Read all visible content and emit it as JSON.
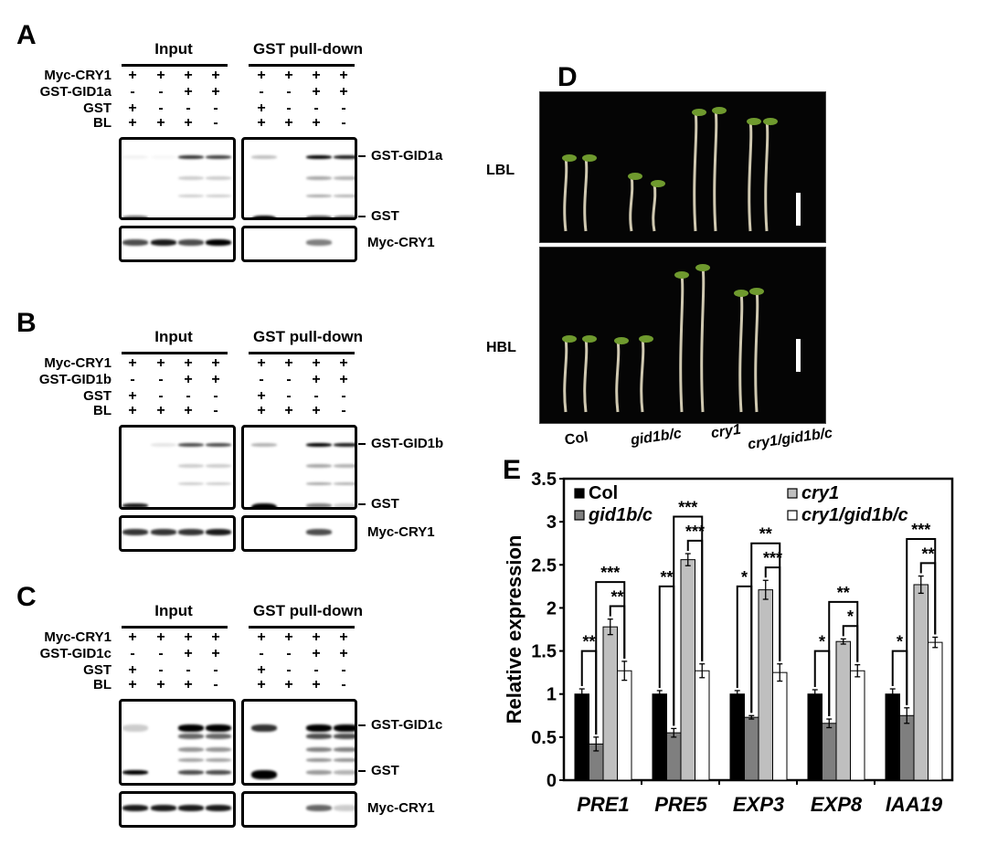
{
  "panels": [
    {
      "letter": "A",
      "input_label": "Input",
      "pulldown_label": "GST pull-down",
      "rows": [
        {
          "name": "Myc-CRY1",
          "signs": [
            "+",
            "+",
            "+",
            "+",
            "+",
            "+",
            "+",
            "+"
          ]
        },
        {
          "name": "GST-GID1a",
          "signs": [
            "-",
            "-",
            "+",
            "+",
            "-",
            "-",
            "+",
            "+"
          ]
        },
        {
          "name": "GST",
          "signs": [
            "+",
            "-",
            "-",
            "-",
            "+",
            "-",
            "-",
            "-"
          ]
        },
        {
          "name": "BL",
          "signs": [
            "+",
            "+",
            "+",
            "-",
            "+",
            "+",
            "+",
            "-"
          ]
        }
      ],
      "band_labels": [
        "GST-GID1a",
        "GST",
        "Myc-CRY1"
      ]
    },
    {
      "letter": "B",
      "input_label": "Input",
      "pulldown_label": "GST pull-down",
      "rows": [
        {
          "name": "Myc-CRY1",
          "signs": [
            "+",
            "+",
            "+",
            "+",
            "+",
            "+",
            "+",
            "+"
          ]
        },
        {
          "name": "GST-GID1b",
          "signs": [
            "-",
            "-",
            "+",
            "+",
            "-",
            "-",
            "+",
            "+"
          ]
        },
        {
          "name": "GST",
          "signs": [
            "+",
            "-",
            "-",
            "-",
            "+",
            "-",
            "-",
            "-"
          ]
        },
        {
          "name": "BL",
          "signs": [
            "+",
            "+",
            "+",
            "-",
            "+",
            "+",
            "+",
            "-"
          ]
        }
      ],
      "band_labels": [
        "GST-GID1b",
        "GST",
        "Myc-CRY1"
      ]
    },
    {
      "letter": "C",
      "input_label": "Input",
      "pulldown_label": "GST pull-down",
      "rows": [
        {
          "name": "Myc-CRY1",
          "signs": [
            "+",
            "+",
            "+",
            "+",
            "+",
            "+",
            "+",
            "+"
          ]
        },
        {
          "name": "GST-GID1c",
          "signs": [
            "-",
            "-",
            "+",
            "+",
            "-",
            "-",
            "+",
            "+"
          ]
        },
        {
          "name": "GST",
          "signs": [
            "+",
            "-",
            "-",
            "-",
            "+",
            "-",
            "-",
            "-"
          ]
        },
        {
          "name": "BL",
          "signs": [
            "+",
            "+",
            "+",
            "-",
            "+",
            "+",
            "+",
            "-"
          ]
        }
      ],
      "band_labels": [
        "GST-GID1c",
        "GST",
        "Myc-CRY1"
      ]
    }
  ],
  "panel_d": {
    "letter": "D",
    "conditions": [
      "LBL",
      "HBL"
    ],
    "genotypes": [
      "Col",
      "gid1b/c",
      "cry1",
      "cry1/gid1b/c"
    ]
  },
  "chart_data": {
    "type": "bar",
    "panel_letter": "E",
    "categories": [
      "PRE1",
      "PRE5",
      "EXP3",
      "EXP8",
      "IAA19"
    ],
    "ylabel": "Relative expression",
    "xlabel": "",
    "ylim": [
      0,
      3.5
    ],
    "yticks": [
      "0",
      "0.5",
      "1",
      "1.5",
      "2",
      "2.5",
      "3",
      "3.5"
    ],
    "legend_position": "top",
    "series": [
      {
        "name": "Col",
        "color": "#000000",
        "values": [
          1.0,
          1.0,
          1.0,
          1.0,
          1.0
        ],
        "errors": [
          0.06,
          0.04,
          0.04,
          0.05,
          0.06
        ]
      },
      {
        "name": "gid1b/c",
        "color": "#7f7f7f",
        "values": [
          0.42,
          0.55,
          0.73,
          0.66,
          0.75
        ],
        "errors": [
          0.08,
          0.05,
          0.02,
          0.05,
          0.09
        ]
      },
      {
        "name": "cry1",
        "color": "#bfbfbf",
        "values": [
          1.78,
          2.56,
          2.21,
          1.61,
          2.27
        ],
        "errors": [
          0.09,
          0.07,
          0.11,
          0.03,
          0.1
        ]
      },
      {
        "name": "cry1/gid1b/c",
        "color": "#ffffff",
        "values": [
          1.27,
          1.27,
          1.25,
          1.27,
          1.6
        ],
        "errors": [
          0.11,
          0.08,
          0.1,
          0.07,
          0.06
        ]
      }
    ],
    "significance": [
      {
        "category": "PRE1",
        "col_vs_gid": "**",
        "gid_vs_double": "***",
        "cry1_vs_double": "**"
      },
      {
        "category": "PRE5",
        "col_vs_gid": "**",
        "gid_vs_double": "***",
        "cry1_vs_double": "***"
      },
      {
        "category": "EXP3",
        "col_vs_gid": "*",
        "gid_vs_double": "**",
        "cry1_vs_double": "***"
      },
      {
        "category": "EXP8",
        "col_vs_gid": "*",
        "gid_vs_double": "**",
        "cry1_vs_double": "*"
      },
      {
        "category": "IAA19",
        "col_vs_gid": "*",
        "gid_vs_double": "***",
        "cry1_vs_double": "**"
      }
    ]
  }
}
